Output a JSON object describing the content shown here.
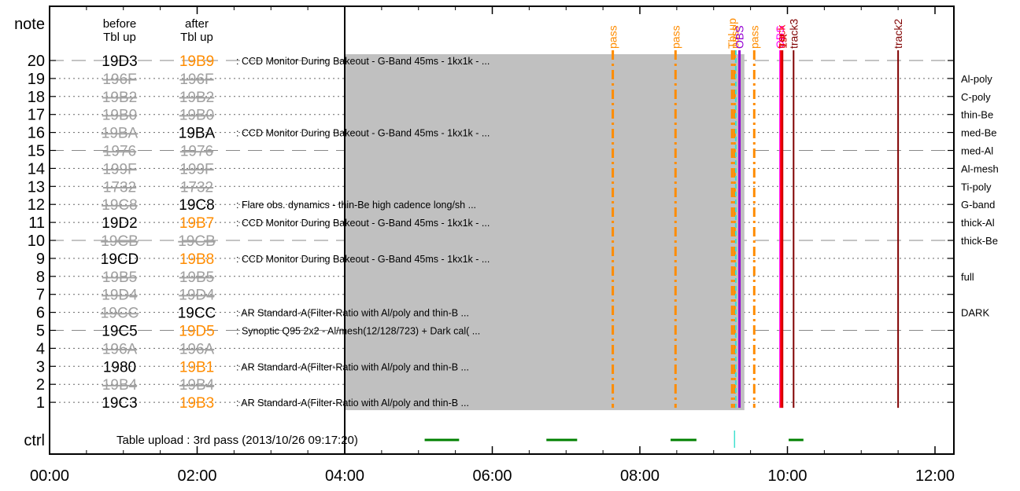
{
  "chart_data": {
    "type": "timeline",
    "xlim": [
      "00:00",
      "12:00"
    ],
    "ylim": [
      0,
      21
    ],
    "x_ticks": [
      "00:00",
      "02:00",
      "04:00",
      "06:00",
      "08:00",
      "10:00",
      "12:00"
    ],
    "y_ticks": [
      "1",
      "2",
      "3",
      "4",
      "5",
      "6",
      "7",
      "8",
      "9",
      "10",
      "11",
      "12",
      "13",
      "14",
      "15",
      "16",
      "17",
      "18",
      "19",
      "20"
    ],
    "y_top_label": "note",
    "y_bottom_label": "ctrl",
    "col_before_header": [
      "before",
      "Tbl up"
    ],
    "col_after_header": [
      "after",
      "Tbl up"
    ],
    "shaded_region": {
      "start": "04:00",
      "end": "09:25",
      "y": [
        0.75,
        20.4
      ]
    },
    "rows": [
      {
        "row": 20,
        "before": "19D3",
        "after": "19B9",
        "before_active": true,
        "after_active": true,
        "after_changed": true,
        "description": ": CCD Monitor During Bakeout - G-Band 45ms - 1kx1k - ..."
      },
      {
        "row": 19,
        "before": "196F",
        "after": "196F",
        "before_active": false,
        "after_active": false,
        "after_changed": false,
        "description": ""
      },
      {
        "row": 18,
        "before": "19B2",
        "after": "19B2",
        "before_active": false,
        "after_active": false,
        "after_changed": false,
        "description": ""
      },
      {
        "row": 17,
        "before": "19B0",
        "after": "19B0",
        "before_active": false,
        "after_active": false,
        "after_changed": false,
        "description": ""
      },
      {
        "row": 16,
        "before": "19BA",
        "after": "19BA",
        "before_active": false,
        "after_active": true,
        "after_changed": false,
        "description": ": CCD Monitor During Bakeout - G-Band 45ms - 1kx1k - ..."
      },
      {
        "row": 15,
        "before": "1976",
        "after": "1976",
        "before_active": false,
        "after_active": false,
        "after_changed": false,
        "description": ""
      },
      {
        "row": 14,
        "before": "199F",
        "after": "199F",
        "before_active": false,
        "after_active": false,
        "after_changed": false,
        "description": ""
      },
      {
        "row": 13,
        "before": "1732",
        "after": "1732",
        "before_active": false,
        "after_active": false,
        "after_changed": false,
        "description": ""
      },
      {
        "row": 12,
        "before": "19C8",
        "after": "19C8",
        "before_active": false,
        "after_active": true,
        "after_changed": false,
        "description": ": Flare obs. dynamics - thin-Be high cadence long/sh ..."
      },
      {
        "row": 11,
        "before": "19D2",
        "after": "19B7",
        "before_active": true,
        "after_active": true,
        "after_changed": true,
        "description": ": CCD Monitor During Bakeout - G-Band 45ms - 1kx1k - ..."
      },
      {
        "row": 10,
        "before": "19CB",
        "after": "19CB",
        "before_active": false,
        "after_active": false,
        "after_changed": false,
        "description": ""
      },
      {
        "row": 9,
        "before": "19CD",
        "after": "19B8",
        "before_active": true,
        "after_active": true,
        "after_changed": true,
        "description": ": CCD Monitor During Bakeout - G-Band 45ms - 1kx1k - ..."
      },
      {
        "row": 8,
        "before": "19B5",
        "after": "19B5",
        "before_active": false,
        "after_active": false,
        "after_changed": false,
        "description": ""
      },
      {
        "row": 7,
        "before": "19D4",
        "after": "19D4",
        "before_active": false,
        "after_active": false,
        "after_changed": false,
        "description": ""
      },
      {
        "row": 6,
        "before": "19CC",
        "after": "19CC",
        "before_active": false,
        "after_active": true,
        "after_changed": false,
        "description": ": AR Standard-A(Filter-Ratio with Al/poly and thin-B ..."
      },
      {
        "row": 5,
        "before": "19C5",
        "after": "19D5",
        "before_active": true,
        "after_active": true,
        "after_changed": true,
        "description": ": Synoptic Q95 2x2 - Al/mesh(12/128/723) + Dark cal( ..."
      },
      {
        "row": 4,
        "before": "196A",
        "after": "196A",
        "before_active": false,
        "after_active": false,
        "after_changed": false,
        "description": ""
      },
      {
        "row": 3,
        "before": "1980",
        "after": "19B1",
        "before_active": true,
        "after_active": true,
        "after_changed": true,
        "description": ": AR Standard-A(Filter-Ratio with Al/poly and thin-B ..."
      },
      {
        "row": 2,
        "before": "19B4",
        "after": "19B4",
        "before_active": false,
        "after_active": false,
        "after_changed": false,
        "description": ""
      },
      {
        "row": 1,
        "before": "19C3",
        "after": "19B3",
        "before_active": true,
        "after_active": true,
        "after_changed": true,
        "description": ": AR Standard-A(Filter-Ratio with Al/poly and thin-B ..."
      }
    ],
    "filters": [
      {
        "row": 19,
        "label": "Al-poly"
      },
      {
        "row": 18,
        "label": "C-poly"
      },
      {
        "row": 17,
        "label": "thin-Be"
      },
      {
        "row": 16,
        "label": "med-Be"
      },
      {
        "row": 15,
        "label": "med-Al"
      },
      {
        "row": 14,
        "label": "Al-mesh"
      },
      {
        "row": 13,
        "label": "Ti-poly"
      },
      {
        "row": 12,
        "label": "G-band"
      },
      {
        "row": 11,
        "label": "thick-Al"
      },
      {
        "row": 10,
        "label": "thick-Be"
      },
      {
        "row": 8,
        "label": "full"
      },
      {
        "row": 6,
        "label": "DARK"
      }
    ],
    "events": [
      {
        "time": "07:38",
        "label": "pass",
        "color": "#ff8c00",
        "style": "dashdot",
        "width": 3
      },
      {
        "time": "08:29",
        "label": "pass",
        "color": "#ff8c00",
        "style": "dashdot",
        "width": 3
      },
      {
        "time": "09:15",
        "label": "Tbl up",
        "color": "#ff8c00",
        "style": "dashdot",
        "width": 3
      },
      {
        "time": "09:17",
        "label": "pass",
        "color": "#ff8c00",
        "style": "dashdot",
        "width": 3
      },
      {
        "time": "09:18",
        "label": "",
        "color": "#40e0d0",
        "style": "dashed",
        "width": 2
      },
      {
        "time": "09:21",
        "label": "OBS",
        "color": "#9400d3",
        "style": "solid",
        "width": 3
      },
      {
        "time": "09:33",
        "label": "pass",
        "color": "#ff8c00",
        "style": "dashdot",
        "width": 3
      },
      {
        "time": "09:54",
        "label": "OBS",
        "color": "#ff00ff",
        "style": "solid",
        "width": 2
      },
      {
        "time": "09:55",
        "label": "track",
        "color": "#ff0000",
        "style": "solid",
        "width": 3
      },
      {
        "time": "09:56",
        "label": "1st",
        "color": "#cc0000",
        "style": "solid",
        "width": 2
      },
      {
        "time": "10:05",
        "label": "track3",
        "color": "#800000",
        "style": "solid",
        "width": 2
      },
      {
        "time": "11:30",
        "label": "track2",
        "color": "#800000",
        "style": "solid",
        "width": 2
      }
    ],
    "ctrl": {
      "text": "Table upload : 3rd pass (2013/10/26 09:17:20)",
      "segments": [
        {
          "start": "05:05",
          "end": "05:33",
          "color": "#008000"
        },
        {
          "start": "06:44",
          "end": "07:09",
          "color": "#008000"
        },
        {
          "start": "08:25",
          "end": "08:46",
          "color": "#008000"
        },
        {
          "start": "10:01",
          "end": "10:13",
          "color": "#008000"
        }
      ],
      "marker": {
        "time": "09:17",
        "color": "#40e0d0"
      }
    },
    "colors": {
      "active": "#000000",
      "inactive": "#a0a0a0",
      "changed": "#ff8c00",
      "shade": "#c0c0c0"
    }
  }
}
